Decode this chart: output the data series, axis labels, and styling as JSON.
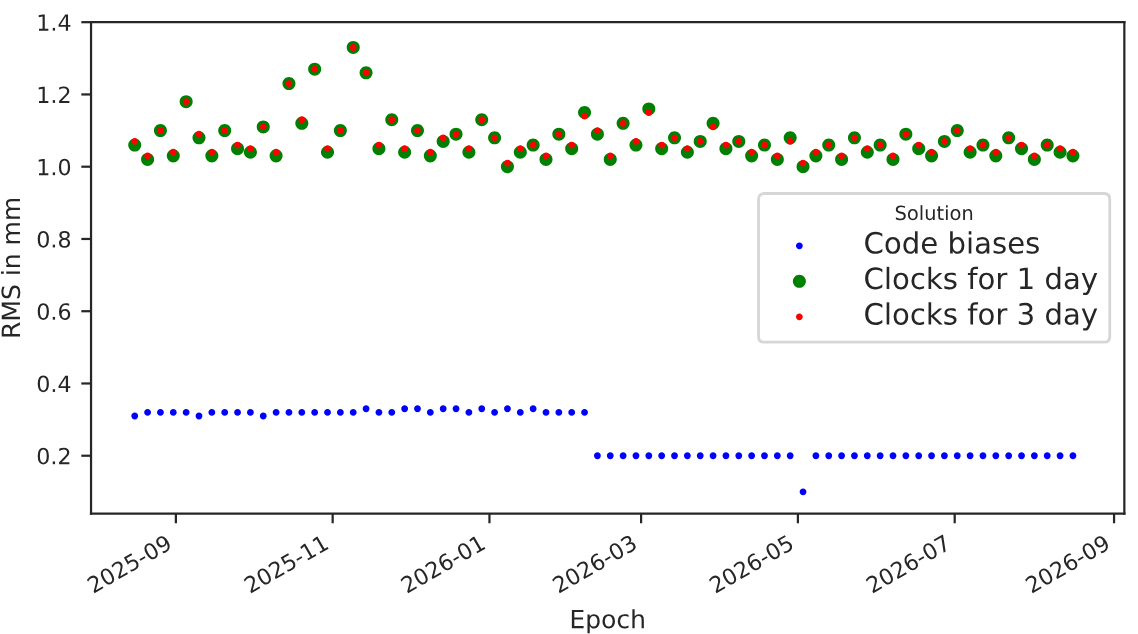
{
  "chart_data": {
    "type": "scatter",
    "xlabel": "Epoch",
    "ylabel": "RMS in mm",
    "legend_title": "Solution",
    "legend": "right",
    "grid": false,
    "marker": "circle",
    "x": [
      "2025-08-16",
      "2025-08-21",
      "2025-08-26",
      "2025-08-31",
      "2025-09-05",
      "2025-09-10",
      "2025-09-15",
      "2025-09-20",
      "2025-09-25",
      "2025-09-30",
      "2025-10-05",
      "2025-10-10",
      "2025-10-15",
      "2025-10-20",
      "2025-10-25",
      "2025-10-30",
      "2025-11-04",
      "2025-11-09",
      "2025-11-14",
      "2025-11-19",
      "2025-11-24",
      "2025-11-29",
      "2025-12-04",
      "2025-12-09",
      "2025-12-14",
      "2025-12-19",
      "2025-12-24",
      "2025-12-29",
      "2026-01-03",
      "2026-01-08",
      "2026-01-13",
      "2026-01-18",
      "2026-01-23",
      "2026-01-28",
      "2026-02-02",
      "2026-02-07",
      "2026-02-12",
      "2026-02-17",
      "2026-02-22",
      "2026-02-27",
      "2026-03-04",
      "2026-03-09",
      "2026-03-14",
      "2026-03-19",
      "2026-03-24",
      "2026-03-29",
      "2026-04-03",
      "2026-04-08",
      "2026-04-13",
      "2026-04-18",
      "2026-04-23",
      "2026-04-28",
      "2026-05-03",
      "2026-05-08",
      "2026-05-13",
      "2026-05-18",
      "2026-05-23",
      "2026-05-28",
      "2026-06-02",
      "2026-06-07",
      "2026-06-12",
      "2026-06-17",
      "2026-06-22",
      "2026-06-27",
      "2026-07-02",
      "2026-07-07",
      "2026-07-12",
      "2026-07-17",
      "2026-07-22",
      "2026-07-27",
      "2026-08-01",
      "2026-08-06",
      "2026-08-11",
      "2026-08-16"
    ],
    "xlim": [
      "2025-07-30",
      "2026-09-05"
    ],
    "xticks": [
      "2025-09",
      "2025-11",
      "2026-01",
      "2026-03",
      "2026-05",
      "2026-07",
      "2026-09"
    ],
    "ylim": [
      0.04,
      1.4
    ],
    "yticks": [
      0.2,
      0.4,
      0.6,
      0.8,
      {
        "value": 1.0,
        "label": "1.0"
      },
      1.2,
      1.4
    ],
    "series": [
      {
        "name": "Code biases",
        "color": "#0000ff",
        "values": [
          0.31,
          0.32,
          0.32,
          0.32,
          0.32,
          0.31,
          0.32,
          0.32,
          0.32,
          0.32,
          0.31,
          0.32,
          0.32,
          0.32,
          0.32,
          0.32,
          0.32,
          0.32,
          0.33,
          0.32,
          0.32,
          0.33,
          0.33,
          0.32,
          0.33,
          0.33,
          0.32,
          0.33,
          0.32,
          0.33,
          0.32,
          0.33,
          0.32,
          0.32,
          0.32,
          0.32,
          0.2,
          0.2,
          0.2,
          0.2,
          0.2,
          0.2,
          0.2,
          0.2,
          0.2,
          0.2,
          0.2,
          0.2,
          0.2,
          0.2,
          0.2,
          0.2,
          0.1,
          0.2,
          0.2,
          0.2,
          0.2,
          0.2,
          0.2,
          0.2,
          0.2,
          0.2,
          0.2,
          0.2,
          0.2,
          0.2,
          0.2,
          0.2,
          0.2,
          0.2,
          0.2,
          0.2,
          0.2,
          0.2
        ]
      },
      {
        "name": "Clocks for 1 day",
        "color": "#008000",
        "values": [
          1.06,
          1.02,
          1.1,
          1.03,
          1.18,
          1.08,
          1.03,
          1.1,
          1.05,
          1.04,
          1.11,
          1.03,
          1.23,
          1.12,
          1.27,
          1.04,
          1.1,
          1.33,
          1.26,
          1.05,
          1.13,
          1.04,
          1.1,
          1.03,
          1.07,
          1.09,
          1.04,
          1.13,
          1.08,
          1.0,
          1.04,
          1.06,
          1.02,
          1.09,
          1.05,
          1.15,
          1.09,
          1.02,
          1.12,
          1.06,
          1.16,
          1.05,
          1.08,
          1.04,
          1.07,
          1.12,
          1.05,
          1.07,
          1.03,
          1.06,
          1.02,
          1.08,
          1.0,
          1.03,
          1.06,
          1.02,
          1.08,
          1.04,
          1.06,
          1.02,
          1.09,
          1.05,
          1.03,
          1.07,
          1.1,
          1.04,
          1.06,
          1.03,
          1.08,
          1.05,
          1.02,
          1.06,
          1.04,
          1.03
        ]
      },
      {
        "name": "Clocks for 3 day",
        "color": "#ff0000",
        "values": [
          1.07,
          1.03,
          1.1,
          1.04,
          1.18,
          1.09,
          1.04,
          1.1,
          1.06,
          1.05,
          1.11,
          1.04,
          1.23,
          1.13,
          1.27,
          1.05,
          1.1,
          1.33,
          1.26,
          1.06,
          1.13,
          1.05,
          1.1,
          1.04,
          1.08,
          1.09,
          1.05,
          1.13,
          1.08,
          1.01,
          1.05,
          1.06,
          1.03,
          1.09,
          1.06,
          1.14,
          1.1,
          1.03,
          1.12,
          1.07,
          1.15,
          1.06,
          1.08,
          1.05,
          1.07,
          1.11,
          1.06,
          1.07,
          1.04,
          1.06,
          1.03,
          1.07,
          1.01,
          1.04,
          1.06,
          1.03,
          1.08,
          1.05,
          1.06,
          1.03,
          1.09,
          1.06,
          1.04,
          1.07,
          1.1,
          1.05,
          1.06,
          1.04,
          1.08,
          1.06,
          1.03,
          1.06,
          1.05,
          1.04
        ]
      }
    ]
  }
}
